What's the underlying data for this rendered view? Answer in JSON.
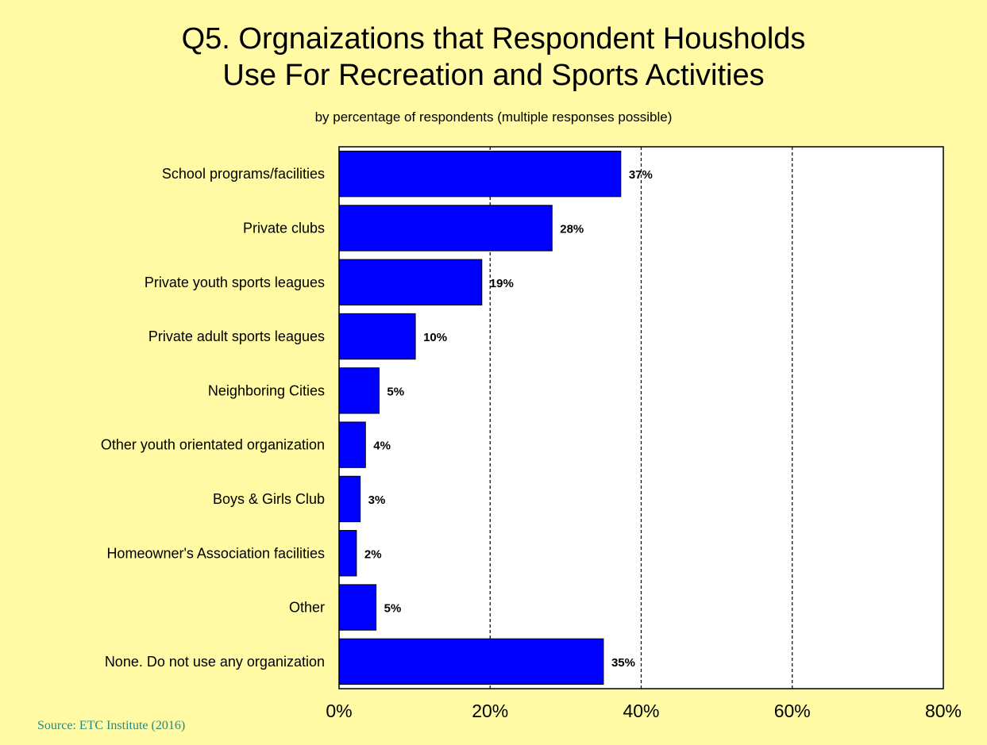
{
  "chart_data": {
    "type": "bar",
    "orientation": "horizontal",
    "title_lines": [
      "Q5. Orgnaizations that Respondent Housholds",
      "Use For Recreation and Sports Activities"
    ],
    "subtitle": "by percentage of respondents (multiple responses possible)",
    "source": "Source: ETC Institute (2016)",
    "categories": [
      "School programs/facilities",
      "Private clubs",
      "Private youth sports leagues",
      "Private adult sports leagues",
      "Neighboring Cities",
      "Other youth orientated organization",
      "Boys & Girls Club",
      "Homeowner's Association facilities",
      "Other",
      "None. Do not use any organization"
    ],
    "values": [
      37.3,
      28.2,
      18.9,
      10.1,
      5.3,
      3.5,
      2.8,
      2.3,
      4.9,
      35.0
    ],
    "value_labels": [
      "37%",
      "28%",
      "19%",
      "10%",
      "5%",
      "4%",
      "3%",
      "2%",
      "5%",
      "35%"
    ],
    "xlim": [
      0,
      80
    ],
    "xticks": [
      0,
      20,
      40,
      60,
      80
    ],
    "xtick_labels": [
      "0%",
      "20%",
      "40%",
      "60%",
      "80%"
    ],
    "grid": "vertical-dashed",
    "bar_color": "#0000ff",
    "background_color": "#ffff99",
    "plot_background": "#ffffff"
  }
}
